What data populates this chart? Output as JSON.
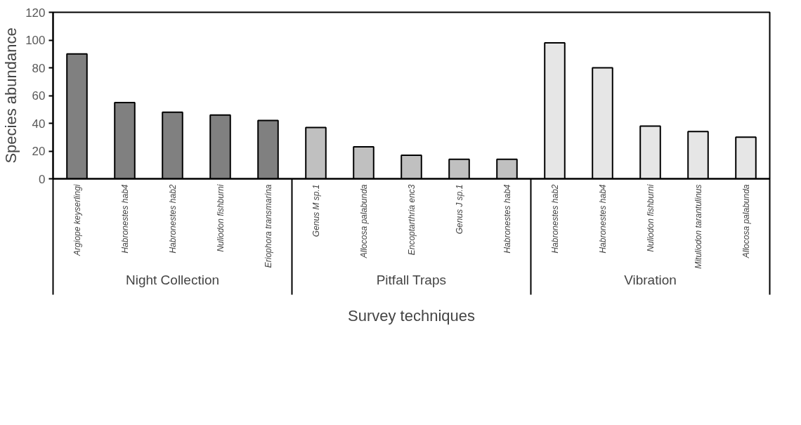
{
  "chart_data": {
    "type": "bar",
    "xlabel": "Survey techniques",
    "ylabel": "Species abundance",
    "categories": [
      "Argiope keyserlingi",
      "Habronestes hab4",
      "Habronestes hab2",
      "Nuliodon fishburni",
      "Eriophora transmarina",
      "Genus M sp.1",
      "Allocosa palabunda",
      "Encoptarthria enc3",
      "Genus J sp.1",
      "Habronestes hab4",
      "Habronestes hab2",
      "Habronestes hab4",
      "Nuliodon fishburni",
      "Mituliodon tarantulinus",
      "Allocosa palabunda"
    ],
    "values": [
      90,
      55,
      48,
      46,
      42,
      37,
      23,
      17,
      14,
      14,
      98,
      80,
      38,
      34,
      30
    ],
    "colors": [
      "#808080",
      "#808080",
      "#808080",
      "#808080",
      "#808080",
      "#c0c0c0",
      "#c0c0c0",
      "#c0c0c0",
      "#c0c0c0",
      "#c0c0c0",
      "#e6e6e6",
      "#e6e6e6",
      "#e6e6e6",
      "#e6e6e6",
      "#e6e6e6"
    ],
    "annotations": [
      "Night Collection",
      "Pitfall Traps",
      "Vibration"
    ],
    "ylim": [
      0,
      120
    ],
    "yticks": [
      0,
      20,
      40,
      60,
      80,
      100,
      120
    ]
  }
}
